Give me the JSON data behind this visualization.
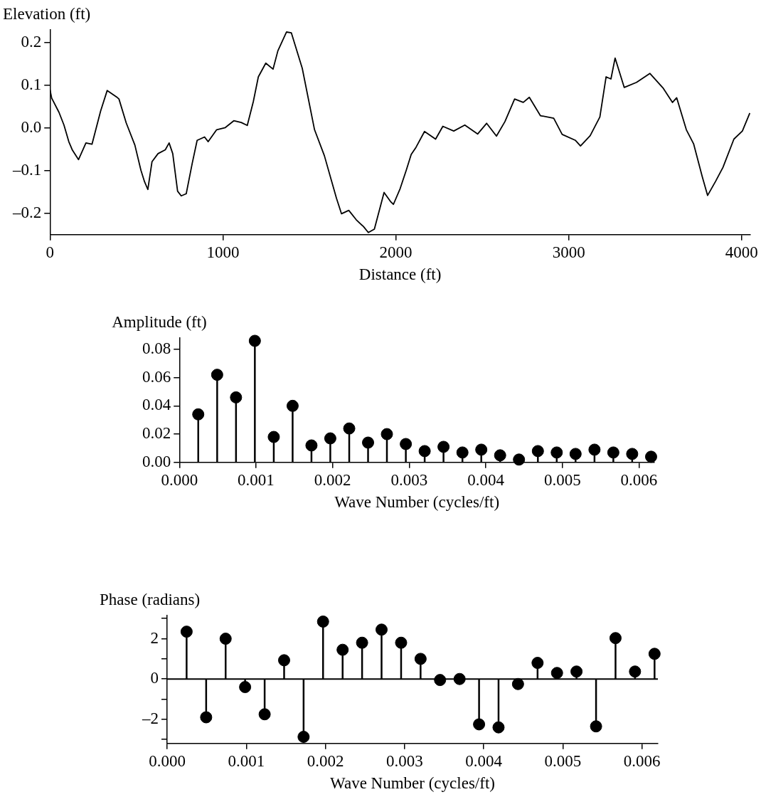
{
  "chart_data": [
    {
      "type": "line",
      "ylabel": "Elevation (ft)",
      "xlabel": "Distance (ft)",
      "series": [
        {
          "color": "#000000",
          "x": [
            0,
            10,
            52,
            81,
            109,
            130,
            165,
            208,
            243,
            293,
            331,
            385,
            399,
            441,
            491,
            526,
            547,
            566,
            590,
            625,
            667,
            689,
            710,
            738,
            759,
            788,
            823,
            851,
            894,
            915,
            964,
            1014,
            1063,
            1106,
            1141,
            1176,
            1205,
            1248,
            1290,
            1318,
            1368,
            1396,
            1459,
            1530,
            1587,
            1657,
            1686,
            1728,
            1771,
            1813,
            1841,
            1876,
            1932,
            1969,
            1986,
            2025,
            2061,
            2089,
            2117,
            2166,
            2230,
            2272,
            2335,
            2399,
            2473,
            2525,
            2582,
            2631,
            2687,
            2737,
            2772,
            2836,
            2913,
            2962,
            3039,
            3068,
            3124,
            3180,
            3216,
            3244,
            3268,
            3321,
            3392,
            3469,
            3547,
            3600,
            3624,
            3680,
            3722,
            3772,
            3803,
            3849,
            3892,
            3955,
            4004,
            4047
          ],
          "values": [
            0.09,
            0.07,
            0.037,
            0.007,
            -0.032,
            -0.052,
            -0.074,
            -0.035,
            -0.038,
            0.04,
            0.088,
            0.073,
            0.068,
            0.012,
            -0.04,
            -0.099,
            -0.126,
            -0.144,
            -0.079,
            -0.06,
            -0.051,
            -0.035,
            -0.06,
            -0.148,
            -0.159,
            -0.154,
            -0.082,
            -0.029,
            -0.021,
            -0.032,
            -0.004,
            0.001,
            0.017,
            0.013,
            0.006,
            0.062,
            0.12,
            0.152,
            0.138,
            0.181,
            0.225,
            0.223,
            0.14,
            -0.004,
            -0.065,
            -0.165,
            -0.201,
            -0.193,
            -0.215,
            -0.231,
            -0.245,
            -0.237,
            -0.151,
            -0.172,
            -0.179,
            -0.142,
            -0.098,
            -0.062,
            -0.045,
            -0.008,
            -0.026,
            0.004,
            -0.007,
            0.007,
            -0.014,
            0.011,
            -0.019,
            0.015,
            0.068,
            0.06,
            0.072,
            0.029,
            0.023,
            -0.015,
            -0.029,
            -0.042,
            -0.018,
            0.026,
            0.12,
            0.115,
            0.164,
            0.095,
            0.107,
            0.128,
            0.093,
            0.06,
            0.071,
            -0.004,
            -0.037,
            -0.114,
            -0.158,
            -0.125,
            -0.092,
            -0.026,
            -0.007,
            0.035
          ]
        }
      ],
      "xlim": [
        0,
        4050
      ],
      "xticks": [
        0,
        1000,
        2000,
        3000,
        4000
      ],
      "ylim": [
        -0.25,
        0.23
      ],
      "yticks": [
        {
          "value": -0.2,
          "label": "–0.2"
        },
        {
          "value": -0.1,
          "label": "–0.1"
        },
        {
          "value": 0,
          "label": "0.0"
        },
        0.1,
        0.2
      ]
    },
    {
      "type": "lollipop",
      "ylabel": "Amplitude (ft)",
      "xlabel": "Wave Number (cycles/ft)",
      "marker": "circle",
      "x": [
        0.000246,
        0.000493,
        0.000739,
        0.000985,
        0.001232,
        0.001478,
        0.001724,
        0.00197,
        0.002217,
        0.002463,
        0.002709,
        0.002956,
        0.003202,
        0.003448,
        0.003695,
        0.003941,
        0.004187,
        0.004433,
        0.00468,
        0.004926,
        0.005172,
        0.005419,
        0.005665,
        0.005911,
        0.006158
      ],
      "series": [
        {
          "color": "#000000",
          "values": [
            0.034,
            0.062,
            0.046,
            0.086,
            0.018,
            0.04,
            0.012,
            0.017,
            0.024,
            0.014,
            0.02,
            0.013,
            0.008,
            0.011,
            0.007,
            0.009,
            0.005,
            0.002,
            0.008,
            0.007,
            0.006,
            0.009,
            0.007,
            0.006,
            0.004
          ]
        }
      ],
      "xlim": [
        0,
        0.0062
      ],
      "xticks": [
        {
          "value": 0,
          "label": "0.000"
        },
        0.001,
        0.002,
        0.003,
        0.004,
        0.005,
        0.006
      ],
      "ylim": [
        0,
        0.088
      ],
      "yticks": [
        {
          "value": 0,
          "label": "0.00"
        },
        0.02,
        0.04,
        0.06,
        0.08
      ]
    },
    {
      "type": "lollipop",
      "ylabel": "Phase (radians)",
      "xlabel": "Wave Number (cycles/ft)",
      "marker": "circle",
      "x": [
        0.000246,
        0.000493,
        0.000739,
        0.000985,
        0.001232,
        0.001478,
        0.001724,
        0.00197,
        0.002217,
        0.002463,
        0.002709,
        0.002956,
        0.003202,
        0.003448,
        0.003695,
        0.003941,
        0.004187,
        0.004433,
        0.00468,
        0.004926,
        0.005172,
        0.005419,
        0.005665,
        0.005911,
        0.006158
      ],
      "series": [
        {
          "color": "#000000",
          "values": [
            2.35,
            -1.9,
            2.0,
            -0.4,
            -1.75,
            0.93,
            -2.87,
            2.85,
            1.45,
            1.8,
            2.45,
            1.8,
            1.0,
            -0.05,
            0.0,
            -2.25,
            -2.4,
            -0.25,
            0.8,
            0.3,
            0.37,
            -2.35,
            2.03,
            0.37,
            1.25
          ]
        }
      ],
      "ref_lines": [
        {
          "axis": "y",
          "value": 0,
          "color": "#000000"
        }
      ],
      "xlim": [
        0,
        0.0062
      ],
      "xticks": [
        {
          "value": 0,
          "label": "0.000"
        },
        0.001,
        0.002,
        0.003,
        0.004,
        0.005,
        0.006
      ],
      "ylim": [
        -3.2,
        3.15
      ],
      "yticks": [
        {
          "value": -3,
          "label": null
        },
        {
          "value": -2,
          "label": "–2"
        },
        {
          "value": -1,
          "label": null
        },
        0,
        {
          "value": 1,
          "label": null
        },
        2,
        {
          "value": 3,
          "label": null
        }
      ]
    }
  ]
}
